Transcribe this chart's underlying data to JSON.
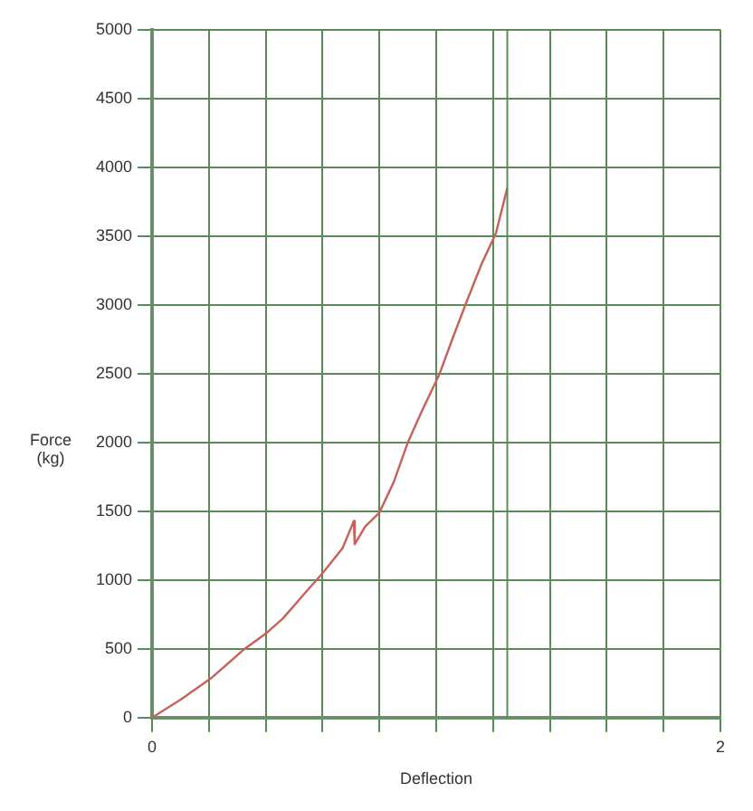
{
  "chart_data": {
    "type": "line",
    "xlabel": "Deflection",
    "ylabel": "Force (kg)",
    "x": [
      0,
      0.1,
      0.21,
      0.32,
      0.4,
      0.46,
      0.54,
      0.6,
      0.67,
      0.71,
      0.713,
      0.75,
      0.8,
      0.85,
      0.9,
      0.95,
      1.01,
      1.06,
      1.11,
      1.16,
      1.21,
      1.25
    ],
    "series": [
      {
        "color": "#c8605a",
        "values": [
          0,
          130,
          290,
          490,
          610,
          720,
          910,
          1050,
          1230,
          1430,
          1260,
          1390,
          1490,
          1710,
          2000,
          2230,
          2490,
          2770,
          3040,
          3300,
          3520,
          3850
        ]
      }
    ],
    "xlim": [
      0,
      2
    ],
    "xticks": [
      0,
      {
        "value": 0.2,
        "label": null
      },
      {
        "value": 0.4,
        "label": null
      },
      {
        "value": 0.6,
        "label": null
      },
      {
        "value": 0.8,
        "label": null
      },
      {
        "value": 1,
        "label": null
      },
      {
        "value": 1.2,
        "label": null
      },
      {
        "value": 1.4,
        "label": null
      },
      {
        "value": 1.6,
        "label": null
      },
      {
        "value": 1.8,
        "label": null
      },
      2
    ],
    "ylim": [
      0,
      5000
    ],
    "yticks": [
      0,
      500,
      1000,
      1500,
      2000,
      2500,
      3000,
      3500,
      4000,
      4500,
      5000
    ],
    "ref_lines": [
      {
        "axis": "x",
        "value": 1.25,
        "color": "#5a8a5a"
      }
    ],
    "grid": true,
    "legend": false,
    "marker": "none",
    "line_style": "solid"
  }
}
